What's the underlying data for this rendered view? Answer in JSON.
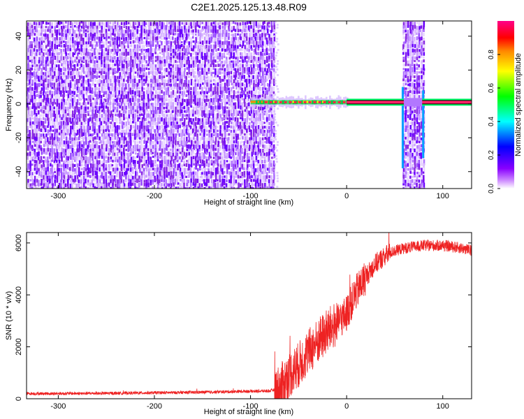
{
  "title": "C2E1.2025.125.13.48.R09",
  "chart_data": [
    {
      "type": "heatmap",
      "xlabel": "Height of straight line (km)",
      "ylabel": "Frequency (Hz)",
      "xlim": [
        -333,
        130
      ],
      "ylim": [
        -50,
        49
      ],
      "x_ticks": [
        -300,
        -200,
        -100,
        0,
        100
      ],
      "y_ticks": [
        -40,
        -20,
        0,
        20,
        40
      ],
      "colorbar": {
        "label": "Normalized spectral amplitude",
        "range": [
          0,
          1
        ],
        "ticks": [
          0.0,
          0.2,
          0.4,
          0.6,
          0.8
        ],
        "colors": [
          "#ffffff",
          "#cc88ff",
          "#8800ff",
          "#0000ff",
          "#00ffff",
          "#00ff00",
          "#ffff00",
          "#ff8800",
          "#ff0000",
          "#ff0088"
        ]
      },
      "features": {
        "noise_region_x": [
          -333,
          -75
        ],
        "carrier_freq_hz": 1,
        "carrier_x": [
          -100,
          130
        ],
        "dropout_bands_x": [
          [
            58,
            80
          ]
        ]
      }
    },
    {
      "type": "line",
      "xlabel": "Height of straight line (km)",
      "ylabel": "SNR (10 * v/v)",
      "xlim": [
        -333,
        130
      ],
      "ylim": [
        0,
        6400
      ],
      "x_ticks": [
        -300,
        -200,
        -100,
        0,
        100
      ],
      "y_ticks": [
        0,
        2000,
        4000,
        6000
      ],
      "color": "#ee2222",
      "series": [
        {
          "x": [
            -333,
            -300,
            -250,
            -200,
            -150,
            -100,
            -80,
            -70,
            -60,
            -50,
            -40,
            -30,
            -20,
            -10,
            0,
            10,
            20,
            30,
            40,
            50,
            60,
            80,
            100,
            120,
            130
          ],
          "values": [
            200,
            200,
            210,
            230,
            250,
            290,
            300,
            400,
            900,
            1300,
            1800,
            2200,
            2600,
            2900,
            3300,
            4100,
            4700,
            5200,
            5500,
            5700,
            5800,
            5900,
            5900,
            5800,
            5700
          ]
        }
      ]
    }
  ]
}
